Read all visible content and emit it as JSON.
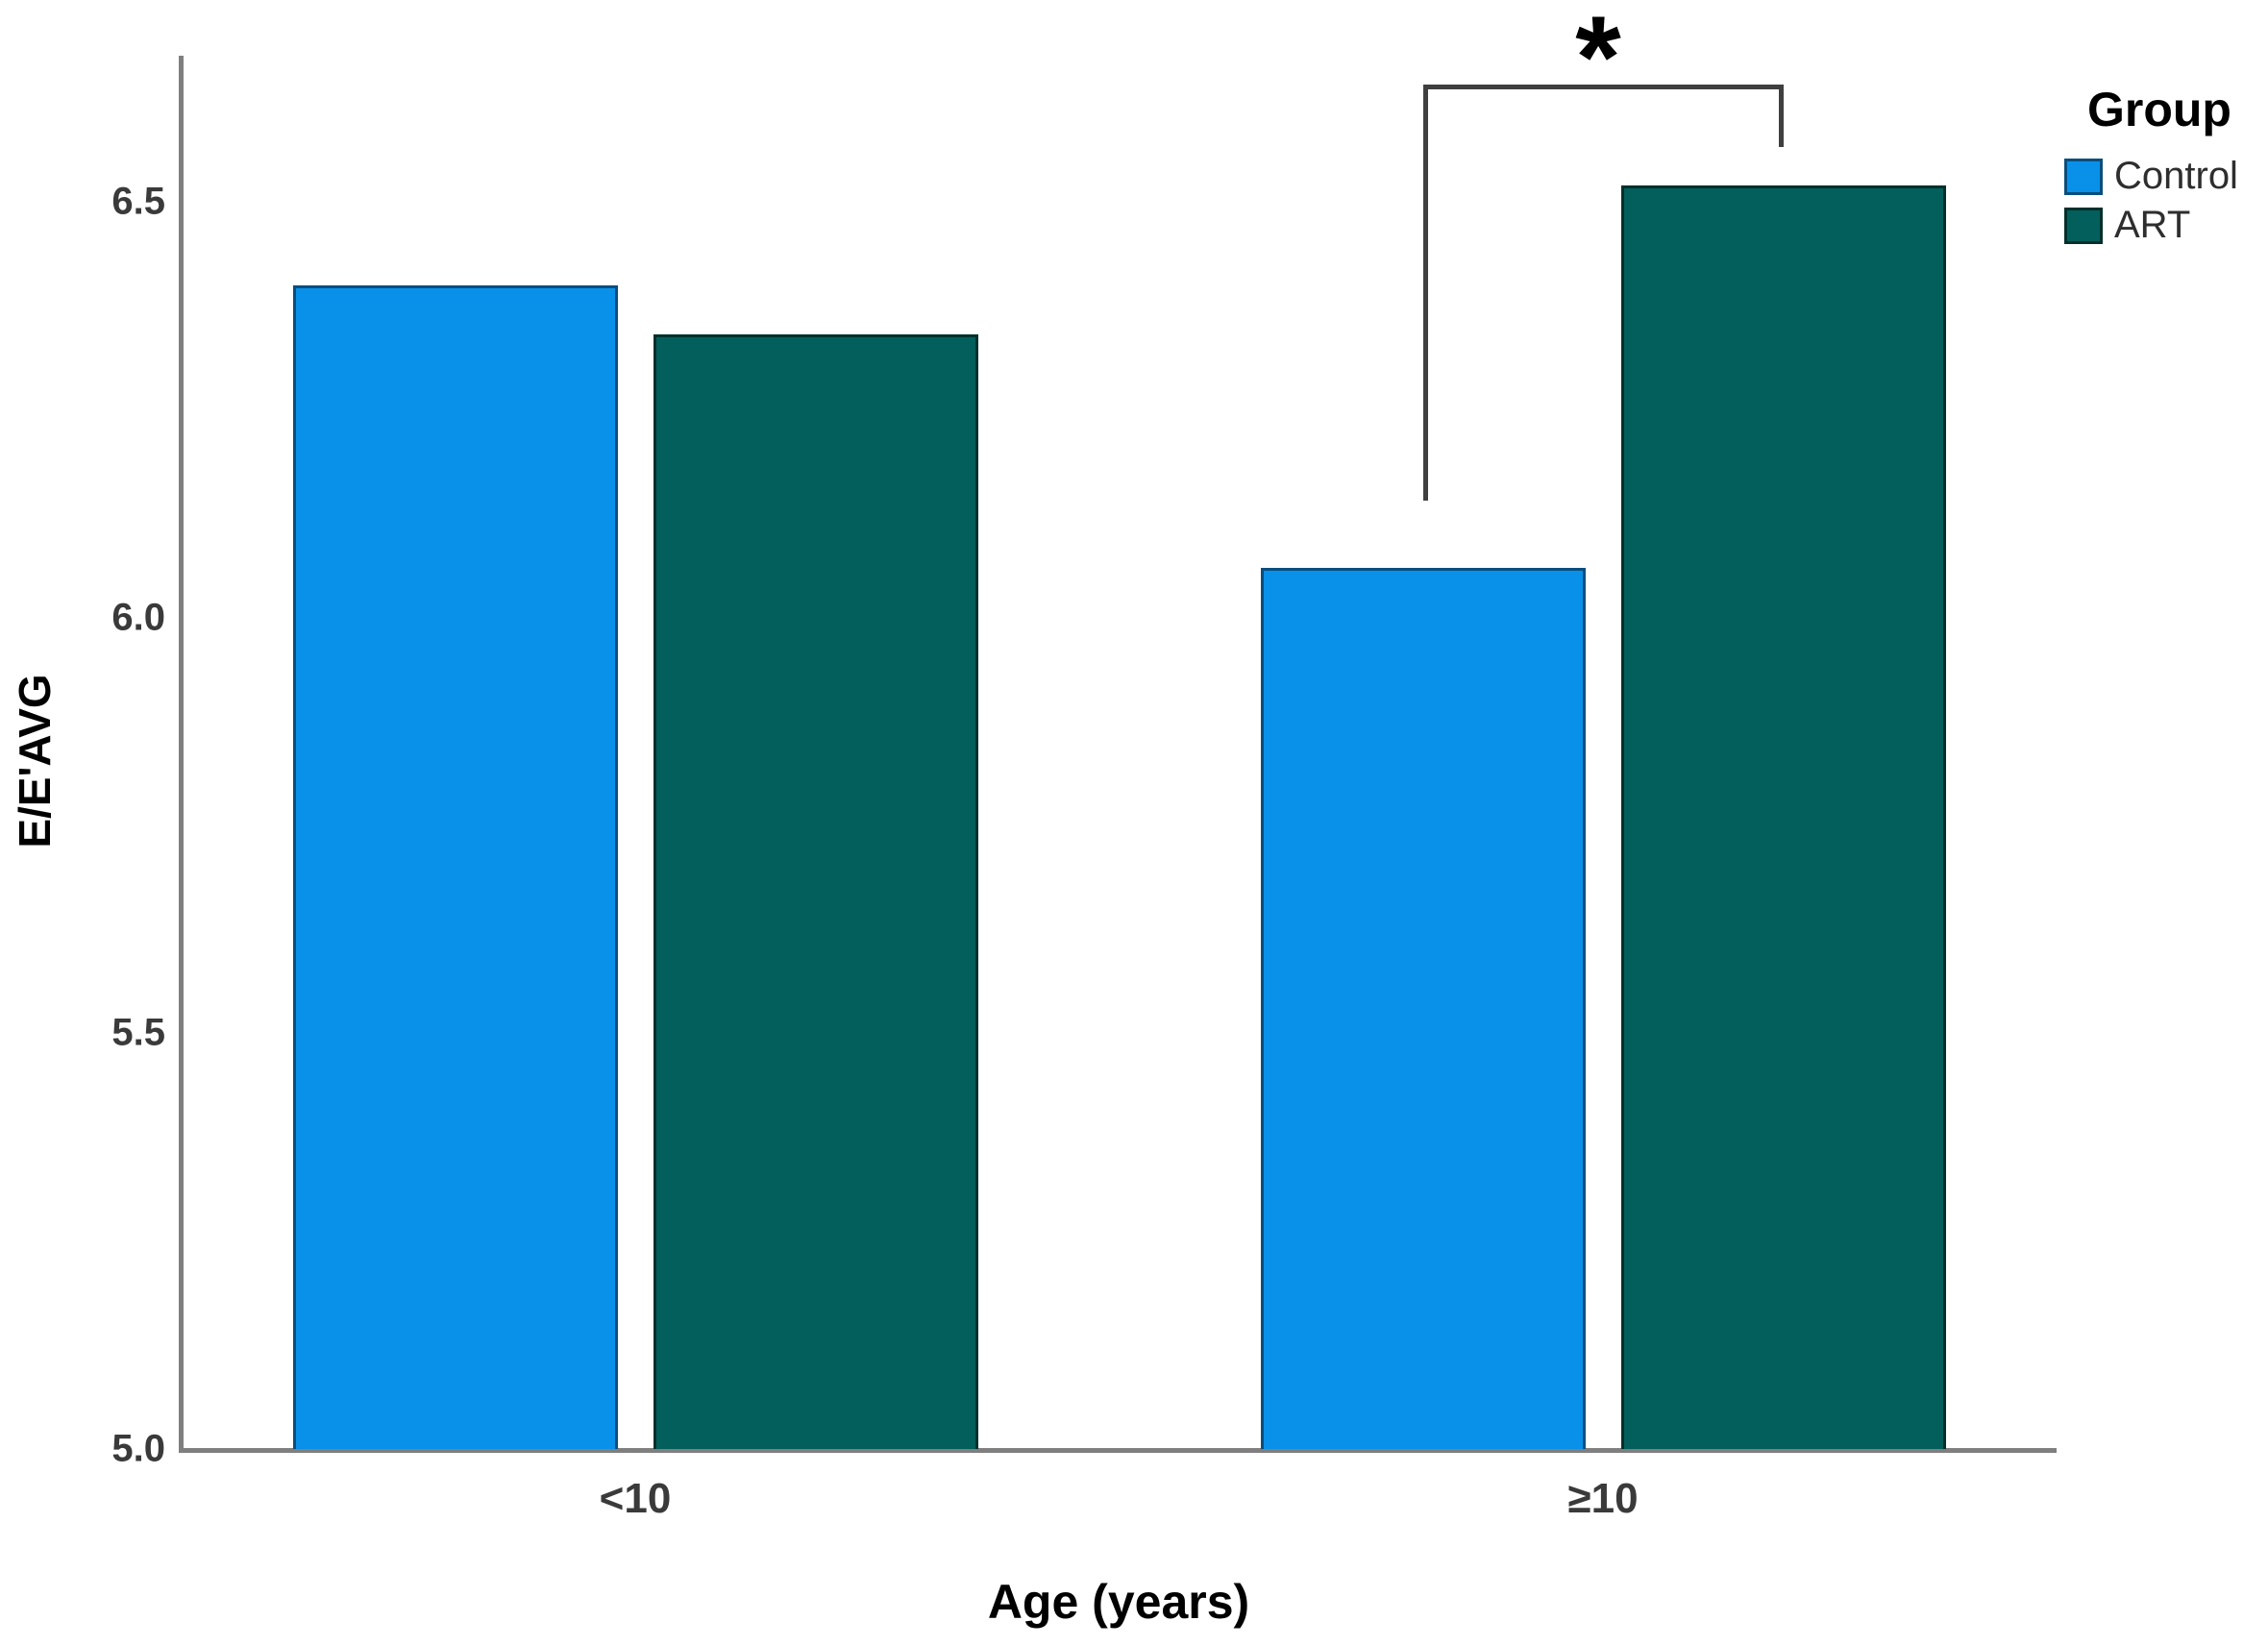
{
  "chart_data": {
    "type": "bar",
    "title": "",
    "xlabel": "Age (years)",
    "ylabel": "E/E'AVG",
    "categories": [
      "<10",
      "≥10"
    ],
    "series": [
      {
        "name": "Control",
        "values": [
          6.4,
          6.06
        ],
        "color": "#0991e9",
        "border_color": "#0a4e7c"
      },
      {
        "name": "ART",
        "values": [
          6.34,
          6.52
        ],
        "color": "#035f5b",
        "border_color": "#02302c"
      }
    ],
    "ylim": [
      5.0,
      6.7
    ],
    "yticks": [
      "5.0",
      "5.5",
      "6.0",
      "6.5"
    ],
    "grid": false,
    "legend": {
      "title": "Group",
      "position": "top-right"
    },
    "annotation": {
      "text": "*",
      "meaning": "significant difference",
      "category": "≥10",
      "connects": [
        "Control",
        "ART"
      ]
    },
    "colors": {
      "axis_line": "#7f7f7f",
      "bracket_line": "#3f3f3f",
      "tick_text": "#3a3a3a",
      "title_text": "#000000",
      "background": "#ffffff"
    }
  }
}
